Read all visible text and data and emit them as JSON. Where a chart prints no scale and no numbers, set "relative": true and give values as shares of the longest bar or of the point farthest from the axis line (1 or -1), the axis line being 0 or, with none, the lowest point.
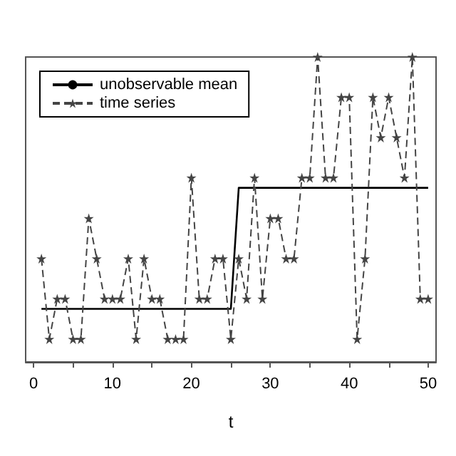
{
  "chart_data": {
    "type": "line",
    "xlabel": "t",
    "relative": true,
    "grid": false,
    "legend": "top left",
    "tick_labels": "x",
    "x": [
      1,
      2,
      3,
      4,
      5,
      6,
      7,
      8,
      9,
      10,
      11,
      12,
      13,
      14,
      15,
      16,
      17,
      18,
      19,
      20,
      21,
      22,
      23,
      24,
      25,
      26,
      27,
      28,
      29,
      30,
      31,
      32,
      33,
      34,
      35,
      36,
      37,
      38,
      39,
      40,
      41,
      42,
      43,
      44,
      45,
      46,
      47,
      48,
      49,
      50
    ],
    "xlim": [
      -1,
      51
    ],
    "xticks": [
      0,
      {
        "value": 5,
        "label": null
      },
      10,
      {
        "value": 15,
        "label": null
      },
      20,
      {
        "value": 25,
        "label": null
      },
      30,
      {
        "value": 35,
        "label": null
      },
      40,
      {
        "value": 45,
        "label": null
      },
      50
    ],
    "series": [
      {
        "name": "unobservable mean",
        "color": "#000000",
        "line_style": "solid",
        "marker": "none",
        "values": [
          0.174,
          0.174,
          0.174,
          0.174,
          0.174,
          0.174,
          0.174,
          0.174,
          0.174,
          0.174,
          0.174,
          0.174,
          0.174,
          0.174,
          0.174,
          0.174,
          0.174,
          0.174,
          0.174,
          0.174,
          0.174,
          0.174,
          0.174,
          0.174,
          0.174,
          0.571,
          0.571,
          0.571,
          0.571,
          0.571,
          0.571,
          0.571,
          0.571,
          0.571,
          0.571,
          0.571,
          0.571,
          0.571,
          0.571,
          0.571,
          0.571,
          0.571,
          0.571,
          0.571,
          0.571,
          0.571,
          0.571,
          0.571,
          0.571,
          0.571
        ]
      },
      {
        "name": "time series",
        "color": "#444444",
        "line_style": "dashed",
        "marker": "star",
        "values": [
          0.339,
          0.075,
          0.207,
          0.207,
          0.075,
          0.075,
          0.471,
          0.339,
          0.207,
          0.207,
          0.207,
          0.339,
          0.075,
          0.339,
          0.207,
          0.207,
          0.075,
          0.075,
          0.075,
          0.604,
          0.207,
          0.207,
          0.339,
          0.339,
          0.075,
          0.339,
          0.207,
          0.604,
          0.207,
          0.471,
          0.471,
          0.339,
          0.339,
          0.604,
          0.604,
          1,
          0.604,
          0.604,
          0.868,
          0.868,
          0.075,
          0.339,
          0.868,
          0.736,
          0.868,
          0.736,
          0.604,
          1,
          0.207,
          0.207
        ]
      }
    ]
  }
}
